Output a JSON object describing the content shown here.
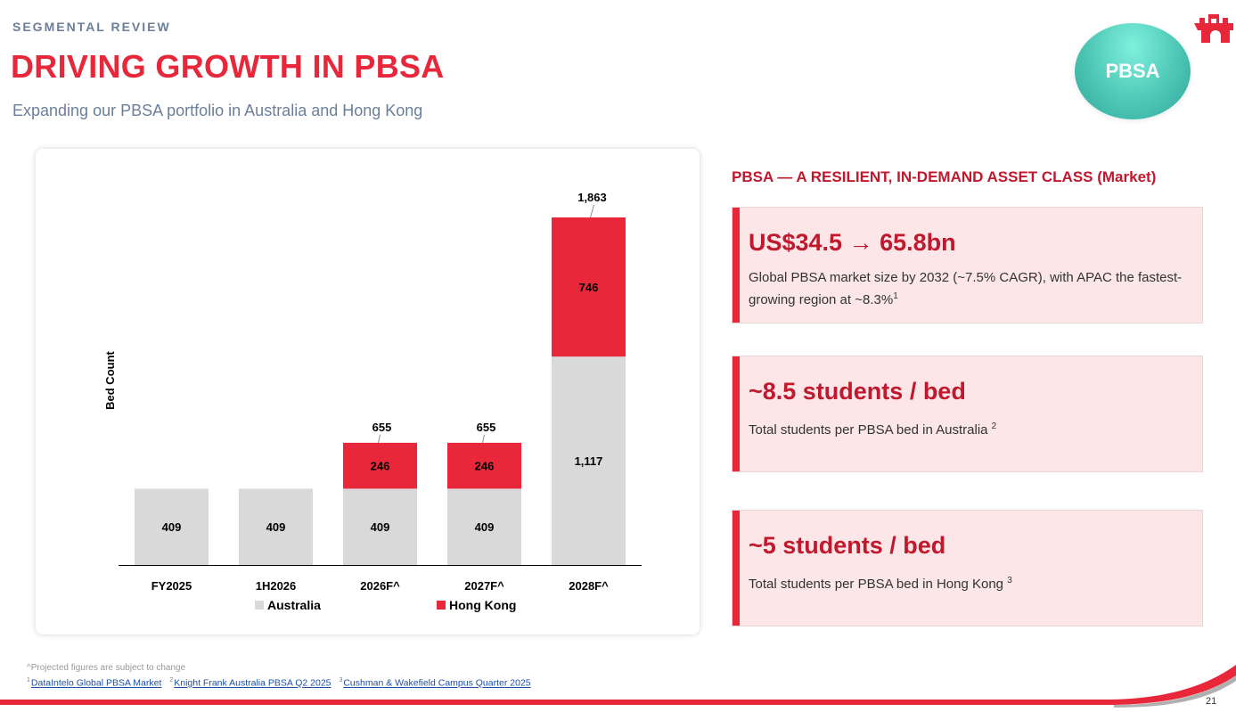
{
  "header": {
    "eyebrow": "SEGMENTAL REVIEW",
    "title": "DRIVING GROWTH IN PBSA",
    "subtitle": "Expanding our PBSA portfolio in Australia and Hong Kong",
    "badge": "PBSA",
    "logo_icon": "castle-crown-icon"
  },
  "chart_data": {
    "type": "bar",
    "stacked": true,
    "categories": [
      "FY2025",
      "1H2026",
      "2026F^",
      "2027F^",
      "2028F^"
    ],
    "series": [
      {
        "name": "Australia",
        "color": "#d9d9d9",
        "values": [
          409,
          409,
          409,
          409,
          1117
        ],
        "labels": [
          "409",
          "409",
          "409",
          "409",
          "1,117"
        ]
      },
      {
        "name": "Hong Kong",
        "color": "#e8283a",
        "values": [
          0,
          0,
          246,
          246,
          746
        ],
        "labels": [
          "",
          "",
          "246",
          "246",
          "746"
        ]
      }
    ],
    "totals": [
      "",
      "",
      "655",
      "655",
      "1,863"
    ],
    "ylabel": "Bed Count",
    "ylim": [
      0,
      2000
    ],
    "grid": false,
    "legend": "bottom"
  },
  "right": {
    "heading": "PBSA — A RESILIENT, IN-DEMAND ASSET CLASS (Market)",
    "cards": [
      {
        "headline": "US$34.5 → 65.8bn",
        "desc": "Global PBSA market size by 2032 (~7.5% CAGR), with APAC the fastest-growing region at ~8.3%",
        "sup": "1"
      },
      {
        "headline": "~8.5 students / bed",
        "desc": "Total students per PBSA bed in Australia ",
        "sup": "2"
      },
      {
        "headline": "~5 students / bed",
        "desc": "Total students per PBSA bed in Hong Kong ",
        "sup": "3"
      }
    ]
  },
  "footnotes": {
    "note": "^Projected figures are subject to change",
    "sources": [
      {
        "num": "1",
        "text": "DataIntelo Global PBSA Market"
      },
      {
        "num": "2",
        "text": "Knight Frank Australia PBSA Q2 2025"
      },
      {
        "num": "3",
        "text": "Cushman & Wakefield Campus Quarter 2025"
      }
    ]
  },
  "page_number": "21",
  "colors": {
    "brand_red": "#e8283a",
    "dark_red": "#c0182c",
    "australia_grey": "#d9d9d9",
    "card_bg": "#fce6e8",
    "muted_blue": "#6b7f9a"
  }
}
